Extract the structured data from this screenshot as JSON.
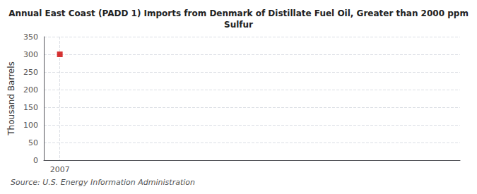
{
  "chart_data": {
    "type": "scatter",
    "title": "Annual East Coast (PADD 1) Imports from Denmark of Distillate Fuel Oil, Greater than 2000 ppm\nSulfur",
    "ylabel": "Thousand Barrels",
    "source": "Source: U.S. Energy Information Administration",
    "x": [
      2007
    ],
    "values": [
      300
    ],
    "color": "#cc0000",
    "marker": "square",
    "xlim": [
      2006.4,
      2022
    ],
    "xticks": [
      2007
    ],
    "ylim": [
      0,
      350
    ],
    "yticks": [
      0,
      50,
      100,
      150,
      200,
      250,
      300,
      350
    ],
    "grid": true
  }
}
